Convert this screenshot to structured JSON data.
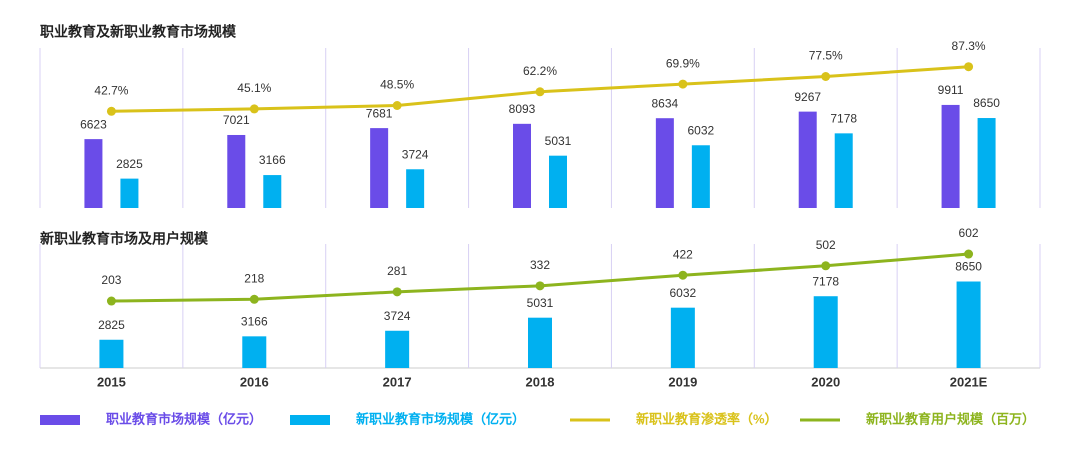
{
  "chart_data": [
    {
      "type": "bar",
      "title": "职业教育及新职业教育市场规模",
      "ylim": [
        0,
        15000
      ],
      "y2lim": [
        -54,
        102
      ],
      "series": [
        {
          "name": "职业教育市场规模（亿元）",
          "color": "#6a4ce8",
          "values": [
            6623,
            7021,
            7681,
            8093,
            8634,
            9267,
            9911
          ]
        },
        {
          "name": "新职业教育市场规模（亿元）",
          "color": "#00b0f0",
          "values": [
            2825,
            3166,
            3724,
            5031,
            6032,
            7178,
            8650
          ]
        },
        {
          "name": "新职业教育渗透率（%）",
          "color": "#d9c21a",
          "type": "line",
          "axis": "y2",
          "values": [
            42.7,
            45.1,
            48.5,
            62.2,
            69.9,
            77.5,
            87.3
          ],
          "value_labels": [
            "42.7%",
            "45.1%",
            "48.5%",
            "62.2%",
            "69.9%",
            "77.5%",
            "87.3%"
          ]
        }
      ]
    },
    {
      "type": "bar",
      "title": "新职业教育市场及用户规模",
      "categories": [
        "2015",
        "2016",
        "2017",
        "2018",
        "2019",
        "2020",
        "2021E"
      ],
      "ylim": [
        0,
        12000
      ],
      "y2lim": [
        -365,
        653
      ],
      "series": [
        {
          "color": "#00b0f0",
          "values": [
            2825,
            3166,
            3724,
            5031,
            6032,
            7178,
            8650
          ]
        },
        {
          "name": "新职业教育用户规模（百万）",
          "color": "#8db41e",
          "type": "line",
          "axis": "y2",
          "values": [
            203,
            218,
            281,
            332,
            422,
            502,
            602
          ]
        }
      ]
    }
  ]
}
